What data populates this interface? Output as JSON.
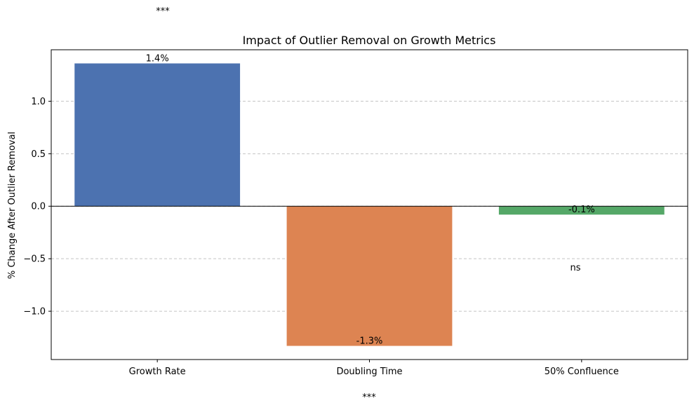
{
  "chart_data": {
    "type": "bar",
    "title": "Impact of Outlier Removal on Growth Metrics",
    "xlabel": "",
    "ylabel": "% Change After Outlier Removal",
    "categories": [
      "Growth Rate",
      "Doubling Time",
      "50% Confluence"
    ],
    "values": [
      1.36,
      -1.33,
      -0.08
    ],
    "value_labels": [
      "1.4%",
      "-1.3%",
      "-0.1%"
    ],
    "significance": [
      "***",
      "***",
      "ns"
    ],
    "colors": [
      "#4c72b0",
      "#dd8452",
      "#55a868"
    ],
    "ylim": [
      -1.46,
      1.49
    ],
    "yticks": [
      -1.0,
      -0.5,
      0.0,
      0.5,
      1.0
    ],
    "ytick_labels": [
      "−1.0",
      "−0.5",
      "0.0",
      "0.5",
      "1.0"
    ],
    "grid": "horizontal-dashed",
    "zero_line": true
  }
}
